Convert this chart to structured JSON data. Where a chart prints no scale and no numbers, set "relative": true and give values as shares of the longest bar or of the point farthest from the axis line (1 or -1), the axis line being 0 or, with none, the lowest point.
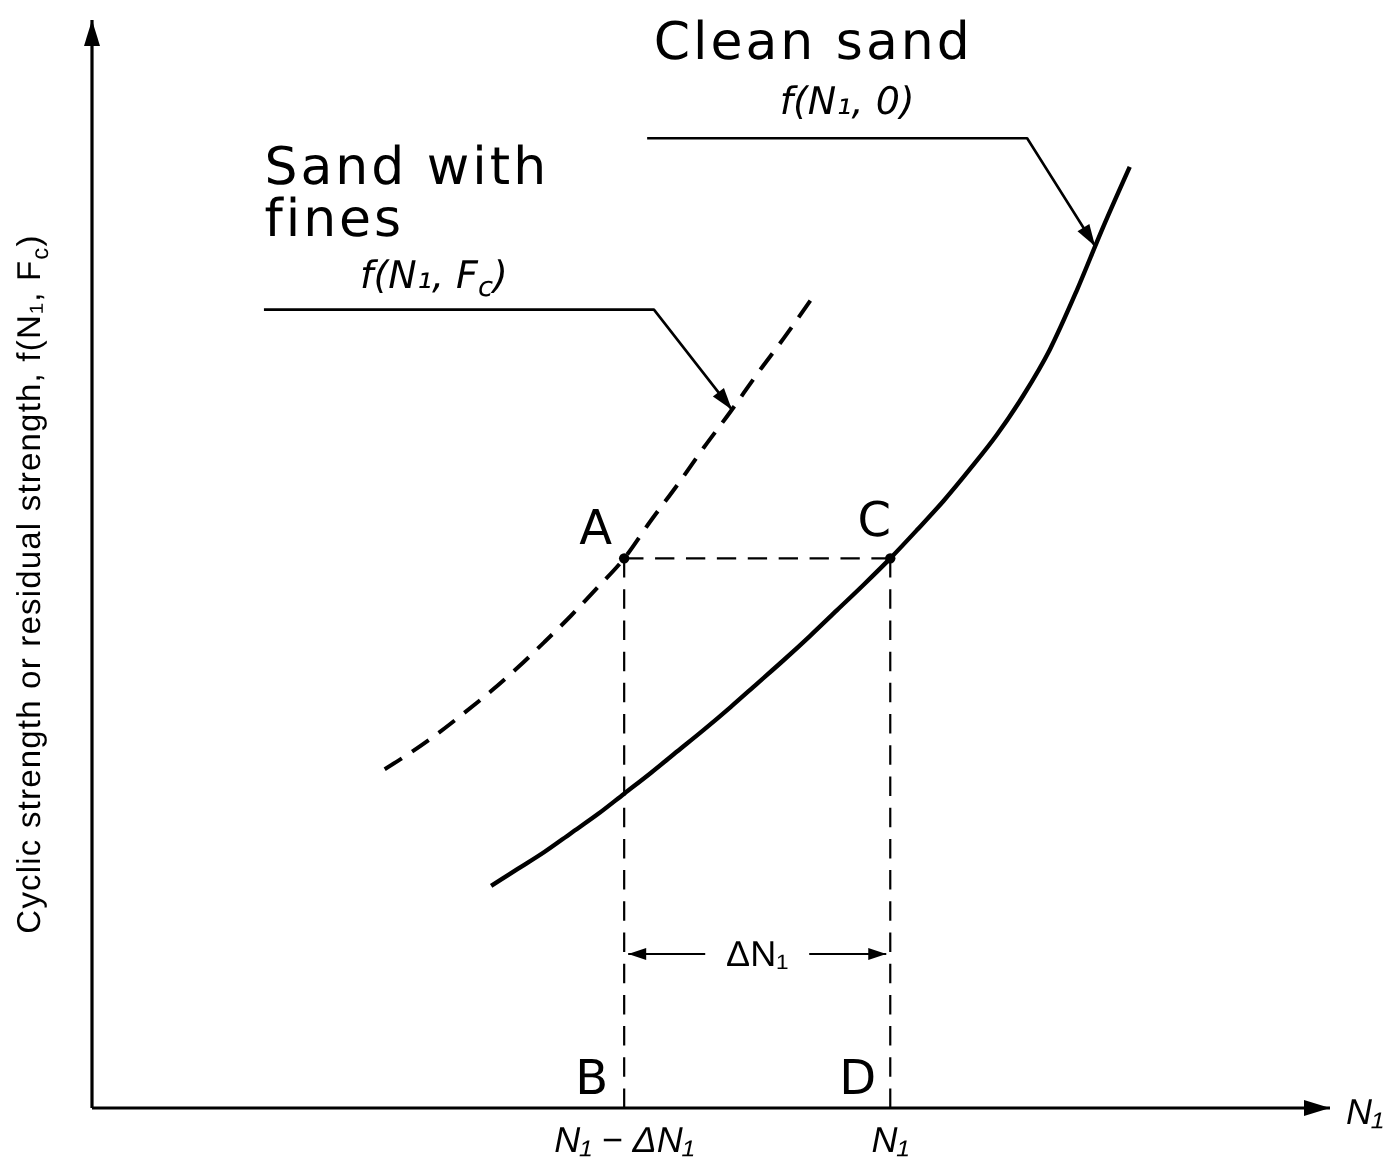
{
  "chart_data": {
    "type": "line",
    "relative": true,
    "xlabel": "N₁",
    "ylabel": "Cyclic strength or residual strength, f(N₁, F$_{c}$)",
    "tick_labels": "x",
    "categories": [
      null,
      null,
      null,
      null,
      null,
      null,
      null,
      null,
      null,
      null,
      null,
      null,
      null,
      null,
      null,
      null,
      null,
      null,
      null,
      null,
      "N₁ − ΔN₁",
      null,
      null,
      null,
      null,
      null,
      null,
      null,
      null,
      null,
      "N₁",
      null,
      null,
      null,
      null,
      null,
      null,
      null,
      null,
      null,
      null,
      null,
      null,
      null,
      null,
      null,
      null
    ],
    "series": [
      {
        "name": "Clean sand",
        "color": "#000000",
        "line_style": "solid",
        "values": [
          null,
          null,
          null,
          null,
          null,
          null,
          null,
          null,
          null,
          null,
          null,
          null,
          null,
          null,
          null,
          0.236,
          0.254,
          0.272,
          0.292,
          0.312,
          0.334,
          0.356,
          0.379,
          0.402,
          0.426,
          0.451,
          0.476,
          0.502,
          0.529,
          0.556,
          0.584,
          0.614,
          0.645,
          0.679,
          0.715,
          0.757,
          0.806,
          0.868,
          0.936,
          1.0,
          null,
          null,
          null,
          null,
          null,
          null,
          null
        ]
      },
      {
        "name": "Sand with fines",
        "color": "#000000",
        "line_style": "dashed",
        "values": [
          null,
          null,
          null,
          null,
          null,
          null,
          null,
          null,
          null,
          null,
          null,
          0.36,
          0.378,
          0.398,
          0.42,
          0.443,
          0.468,
          0.495,
          0.523,
          0.553,
          0.584,
          0.624,
          0.662,
          0.702,
          0.74,
          0.78,
          0.818,
          0.858,
          null,
          null,
          null,
          null,
          null,
          null,
          null,
          null,
          null,
          null,
          null,
          null,
          null,
          null,
          null,
          null,
          null,
          null,
          null
        ]
      },
      {
        "color": "#000000",
        "line_style": "dashed",
        "values": [
          null,
          null,
          null,
          null,
          null,
          null,
          null,
          null,
          null,
          null,
          null,
          null,
          null,
          null,
          null,
          null,
          null,
          null,
          null,
          null,
          0.584,
          0.584,
          0.584,
          0.584,
          0.584,
          0.584,
          0.584,
          0.584,
          0.584,
          0.584,
          0.584,
          null,
          null,
          null,
          null,
          null,
          null,
          null,
          null,
          null,
          null,
          null,
          null,
          null,
          null,
          null,
          null
        ]
      },
      {
        "type": "lollipop",
        "color": "#000000",
        "line_style": "dashed",
        "marker": "circle",
        "values": [
          null,
          null,
          null,
          null,
          null,
          null,
          null,
          null,
          null,
          null,
          null,
          null,
          null,
          null,
          null,
          null,
          null,
          null,
          null,
          null,
          0.584,
          null,
          null,
          null,
          null,
          null,
          null,
          null,
          null,
          null,
          0.584,
          null,
          null,
          null,
          null,
          null,
          null,
          null,
          null,
          null,
          null,
          null,
          null,
          null,
          null,
          null,
          null
        ]
      }
    ],
    "annotations": [
      "f(N₁, 0)",
      "f(N₁, F$_{c}$)",
      {
        "text": "A",
        "x": "N₁ − ΔN₁",
        "y": 0.584
      },
      {
        "text": "C",
        "x": "N₁",
        "y": 0.584
      },
      "B",
      "D",
      "ΔN₁"
    ]
  }
}
